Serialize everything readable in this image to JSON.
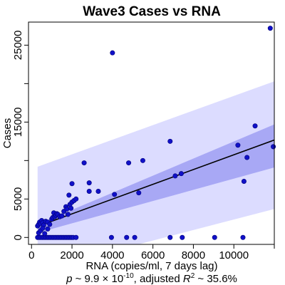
{
  "chart_data": {
    "type": "scatter",
    "title": "Wave3 Cases vs RNA",
    "xlabel": "RNA (copies/ml, 7 days lag)",
    "ylabel": "Cases",
    "xlim": [
      -150,
      12000
    ],
    "ylim": [
      -900,
      28000
    ],
    "x_ticks": [
      0,
      2000,
      4000,
      6000,
      8000,
      10000,
      12000
    ],
    "x_tick_labels": [
      "0",
      "2000",
      "4000",
      "6000",
      "8000",
      "10000",
      ""
    ],
    "y_ticks": [
      0,
      5000,
      10000,
      15000,
      20000,
      25000
    ],
    "y_tick_labels": [
      "0",
      "5000",
      "",
      "15000",
      "",
      "25000"
    ],
    "stats": {
      "p_symbol": "p",
      "p_prefix": " ~ 9.9 × 10",
      "p_exponent": "-10",
      "r2_prefix": ", adjusted ",
      "r2_symbol": "R",
      "r2_exponent": "2",
      "r2_suffix": " ~ 35.6%"
    },
    "regression": {
      "intercept": 1150,
      "slope": 0.96
    },
    "ci_inner": {
      "x": [
        300,
        12000
      ],
      "lower_at_ends": [
        600,
        9100
      ],
      "upper_at_ends": [
        1700,
        14700
      ]
    },
    "prediction_band": {
      "x": [
        300,
        12000
      ],
      "lower_at_ends": [
        -4300,
        3700
      ],
      "upper_at_ends": [
        9200,
        20300
      ]
    },
    "colors": {
      "points": "#1010c8",
      "point_edge": "#00007a",
      "outer_band": "#dcdcff",
      "inner_band": "#a8a8f5",
      "line": "#000000"
    },
    "points": [
      [
        300,
        1500
      ],
      [
        350,
        1700
      ],
      [
        400,
        2000
      ],
      [
        450,
        1800
      ],
      [
        500,
        2200
      ],
      [
        550,
        1900
      ],
      [
        600,
        1600
      ],
      [
        700,
        2100
      ],
      [
        800,
        2000
      ],
      [
        900,
        1700
      ],
      [
        1000,
        2400
      ],
      [
        1050,
        2600
      ],
      [
        1100,
        3200
      ],
      [
        1150,
        2700
      ],
      [
        1200,
        2900
      ],
      [
        1250,
        3100
      ],
      [
        1300,
        3000
      ],
      [
        1400,
        2700
      ],
      [
        1500,
        2800
      ],
      [
        1600,
        3400
      ],
      [
        1700,
        4000
      ],
      [
        1750,
        3700
      ],
      [
        1800,
        3000
      ],
      [
        1850,
        5500
      ],
      [
        1900,
        4300
      ],
      [
        1950,
        3800
      ],
      [
        2000,
        4600
      ],
      [
        2100,
        4800
      ],
      [
        2200,
        5000
      ],
      [
        2000,
        7000
      ],
      [
        2600,
        9700
      ],
      [
        2850,
        7100
      ],
      [
        2850,
        6000
      ],
      [
        3300,
        6000
      ],
      [
        4100,
        5600
      ],
      [
        4000,
        24000
      ],
      [
        4800,
        9700
      ],
      [
        5300,
        5800
      ],
      [
        5500,
        10000
      ],
      [
        6850,
        12500
      ],
      [
        7100,
        8000
      ],
      [
        7400,
        8300
      ],
      [
        10200,
        12000
      ],
      [
        10500,
        7300
      ],
      [
        10650,
        10400
      ],
      [
        11050,
        14500
      ],
      [
        11800,
        27200
      ],
      [
        11950,
        11800
      ],
      [
        300,
        0
      ],
      [
        380,
        0
      ],
      [
        460,
        0
      ],
      [
        540,
        0
      ],
      [
        620,
        0
      ],
      [
        700,
        0
      ],
      [
        780,
        0
      ],
      [
        860,
        0
      ],
      [
        940,
        0
      ],
      [
        1020,
        0
      ],
      [
        1100,
        0
      ],
      [
        1180,
        0
      ],
      [
        1260,
        0
      ],
      [
        1340,
        0
      ],
      [
        1420,
        0
      ],
      [
        1500,
        0
      ],
      [
        1580,
        0
      ],
      [
        1660,
        0
      ],
      [
        1740,
        0
      ],
      [
        1820,
        0
      ],
      [
        1900,
        0
      ],
      [
        1980,
        0
      ],
      [
        2060,
        0
      ],
      [
        2200,
        0
      ],
      [
        3950,
        0
      ],
      [
        4700,
        0
      ],
      [
        5100,
        0
      ],
      [
        6850,
        0
      ],
      [
        7450,
        0
      ],
      [
        9050,
        0
      ],
      [
        10450,
        0
      ],
      [
        350,
        600
      ],
      [
        450,
        900
      ],
      [
        550,
        1200
      ],
      [
        650,
        500
      ],
      [
        800,
        1100
      ]
    ]
  }
}
